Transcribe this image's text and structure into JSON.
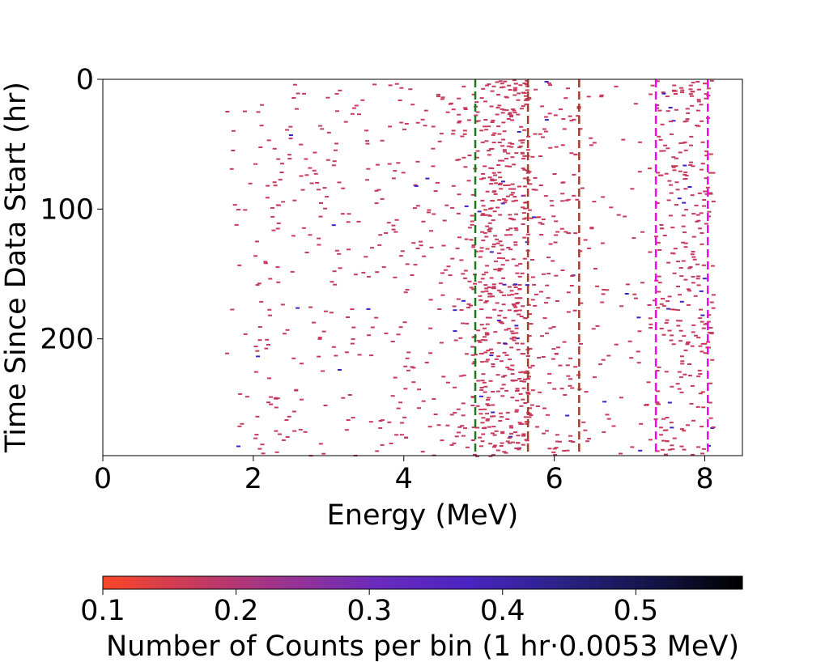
{
  "chart_data": {
    "type": "heatmap",
    "xlabel": "Energy (MeV)",
    "ylabel": "Time Since Data Start (hr)",
    "xlim": [
      0,
      8.5
    ],
    "ylim": [
      290,
      0
    ],
    "x_ticks": [
      0,
      2,
      4,
      6,
      8
    ],
    "y_ticks": [
      0,
      100,
      200
    ],
    "colorbar": {
      "label": "Number of Counts per bin (1 hr·0.0053 MeV)",
      "range": [
        0.1,
        0.58
      ],
      "ticks": [
        0.1,
        0.2,
        0.3,
        0.4,
        0.5
      ],
      "colors": [
        "#fb4628",
        "#c73a5c",
        "#9a3390",
        "#6a2bbd",
        "#4a24c2",
        "#2b2388",
        "#151448",
        "#000000"
      ]
    },
    "reference_lines": [
      {
        "x": 4.95,
        "color": "#1a7a1a"
      },
      {
        "x": 5.65,
        "color": "#a0402a"
      },
      {
        "x": 6.33,
        "color": "#a0402a"
      },
      {
        "x": 7.35,
        "color": "#ff00ff"
      },
      {
        "x": 8.04,
        "color": "#ff00ff"
      }
    ],
    "point_color_default": "#c73a5c",
    "point_color_high": "#3a20c8",
    "density_profile": [
      {
        "x_range": [
          1.6,
          2.0
        ],
        "weight": 0.5
      },
      {
        "x_range": [
          2.0,
          2.6
        ],
        "weight": 1.6
      },
      {
        "x_range": [
          2.6,
          4.6
        ],
        "weight": 1.2
      },
      {
        "x_range": [
          4.6,
          5.0
        ],
        "weight": 3.2
      },
      {
        "x_range": [
          5.0,
          5.65
        ],
        "weight": 9.0
      },
      {
        "x_range": [
          5.65,
          6.3
        ],
        "weight": 2.6
      },
      {
        "x_range": [
          6.3,
          7.0
        ],
        "weight": 0.9
      },
      {
        "x_range": [
          7.0,
          7.3
        ],
        "weight": 1.0
      },
      {
        "x_range": [
          7.3,
          8.1
        ],
        "weight": 4.0
      }
    ]
  }
}
